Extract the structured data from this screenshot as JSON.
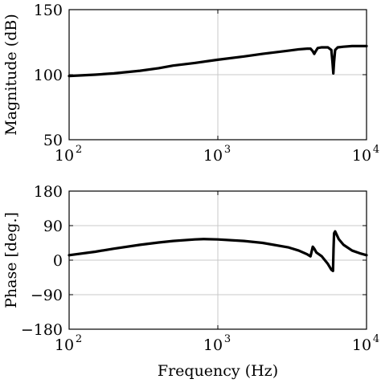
{
  "chart_data": [
    {
      "type": "line",
      "xscale": "log",
      "xlim": [
        100,
        10000
      ],
      "ylim": [
        50,
        150
      ],
      "yticks": [
        50,
        100,
        150
      ],
      "xticks": [
        {
          "base": "10",
          "exp": "2"
        },
        {
          "base": "10",
          "exp": "3"
        },
        {
          "base": "10",
          "exp": "4"
        }
      ],
      "ylabel": "Magnitude (dB)",
      "xlabel": "",
      "grid": true,
      "series": [
        {
          "x": [
            100,
            150,
            200,
            300,
            400,
            500,
            700,
            1000,
            1500,
            2000,
            3000,
            3500,
            4000,
            4200,
            4350,
            4450,
            4550,
            4700,
            5000,
            5500,
            5800,
            5900,
            5980,
            6050,
            6150,
            6400,
            7000,
            8000,
            10000
          ],
          "y": [
            99,
            100,
            101,
            103,
            105,
            107,
            109,
            111.5,
            114,
            116,
            118.5,
            119.5,
            120,
            120,
            118,
            116,
            118,
            120.5,
            121,
            121,
            119,
            110,
            101,
            110,
            119,
            121,
            121.5,
            122,
            122
          ]
        }
      ]
    },
    {
      "type": "line",
      "xscale": "log",
      "xlim": [
        100,
        10000
      ],
      "ylim": [
        -180,
        180
      ],
      "yticks": [
        -180,
        -90,
        0,
        90,
        180
      ],
      "xticks": [
        {
          "base": "10",
          "exp": "2"
        },
        {
          "base": "10",
          "exp": "3"
        },
        {
          "base": "10",
          "exp": "4"
        }
      ],
      "ylabel": "Phase [deg.]",
      "xlabel": "Frequency (Hz)",
      "grid": true,
      "series": [
        {
          "x": [
            100,
            150,
            200,
            300,
            400,
            500,
            700,
            800,
            1000,
            1500,
            2000,
            3000,
            3500,
            4000,
            4200,
            4350,
            4450,
            4600,
            5000,
            5500,
            5800,
            5950,
            6000,
            6050,
            6150,
            6500,
            7000,
            8000,
            9000,
            10000
          ],
          "y": [
            13,
            22,
            30,
            40,
            46,
            50,
            54,
            55,
            54,
            50,
            45,
            33,
            25,
            15,
            10,
            35,
            30,
            20,
            10,
            -10,
            -25,
            -28,
            30,
            70,
            75,
            55,
            40,
            25,
            18,
            13
          ]
        }
      ]
    }
  ]
}
